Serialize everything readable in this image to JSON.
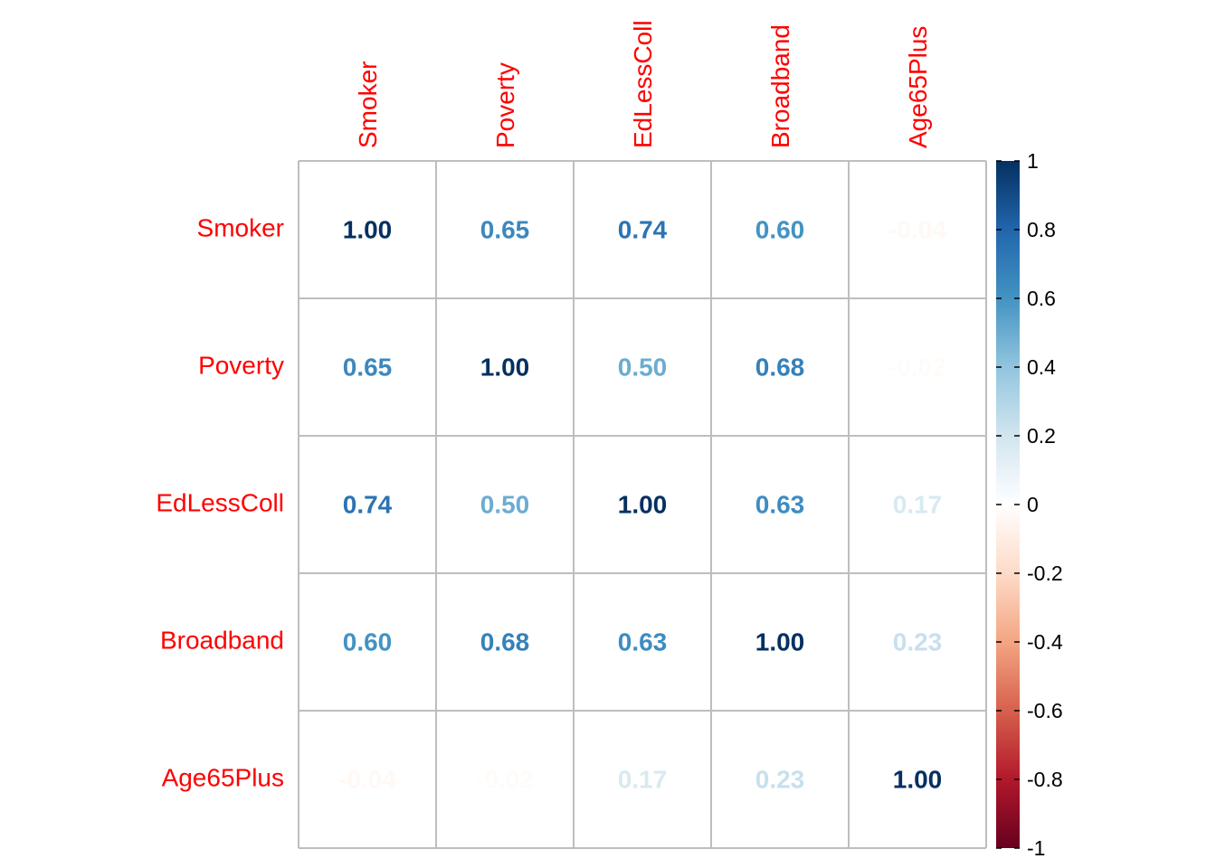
{
  "chart_data": {
    "type": "heatmap",
    "variables": [
      "Smoker",
      "Poverty",
      "EdLessColl",
      "Broadband",
      "Age65Plus"
    ],
    "values": [
      [
        1.0,
        0.65,
        0.74,
        0.6,
        -0.04
      ],
      [
        0.65,
        1.0,
        0.5,
        0.68,
        -0.02
      ],
      [
        0.74,
        0.5,
        1.0,
        0.63,
        0.17
      ],
      [
        0.6,
        0.68,
        0.63,
        1.0,
        0.23
      ],
      [
        -0.04,
        -0.02,
        0.17,
        0.23,
        1.0
      ]
    ],
    "value_format": "2 decimals",
    "label_color": "#ff0000",
    "grid_color": "#bebebe",
    "color_scale": {
      "range": [
        -1,
        1
      ],
      "ticks": [
        1,
        0.8,
        0.6,
        0.4,
        0.2,
        0,
        -0.2,
        -0.4,
        -0.6,
        -0.8,
        -1
      ],
      "colors": [
        "#67001f",
        "#b2182b",
        "#d6604d",
        "#f4a582",
        "#fddbc7",
        "#ffffff",
        "#d1e5f0",
        "#92c5de",
        "#4393c3",
        "#2166ac",
        "#053061"
      ]
    },
    "legend_position": "right"
  }
}
